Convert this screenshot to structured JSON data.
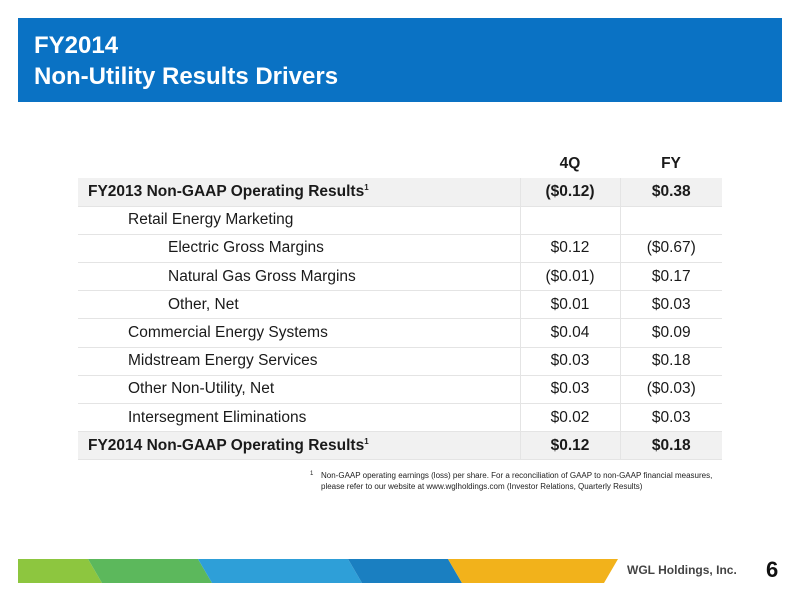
{
  "header": {
    "title_line1": "FY2014",
    "title_line2": "Non-Utility Results Drivers",
    "bg_color": "#0a72c4"
  },
  "table": {
    "columns": [
      "4Q",
      "FY"
    ],
    "rows": [
      {
        "label": "FY2013 Non-GAAP Operating Results",
        "sup": "1",
        "q4": "($0.12)",
        "fy": "$0.38",
        "level": 0,
        "total": true
      },
      {
        "label": "Retail Energy Marketing",
        "q4": "",
        "fy": "",
        "level": 1
      },
      {
        "label": "Electric Gross Margins",
        "q4": "$0.12",
        "fy": "($0.67)",
        "level": 2
      },
      {
        "label": "Natural Gas Gross Margins",
        "q4": "($0.01)",
        "fy": "$0.17",
        "level": 2
      },
      {
        "label": "Other, Net",
        "q4": "$0.01",
        "fy": "$0.03",
        "level": 2
      },
      {
        "label": "Commercial Energy Systems",
        "q4": "$0.04",
        "fy": "$0.09",
        "level": 1
      },
      {
        "label": "Midstream Energy Services",
        "q4": "$0.03",
        "fy": "$0.18",
        "level": 1
      },
      {
        "label": "Other Non-Utility, Net",
        "q4": "$0.03",
        "fy": "($0.03)",
        "level": 1
      },
      {
        "label": "Intersegment Eliminations",
        "q4": "$0.02",
        "fy": "$0.03",
        "level": 1
      },
      {
        "label": "FY2014 Non-GAAP Operating Results",
        "sup": "1",
        "q4": "$0.12",
        "fy": "$0.18",
        "level": 0,
        "total": true
      }
    ]
  },
  "footnote": {
    "mark": "1",
    "text": "Non-GAAP operating earnings (loss) per share. For a reconciliation of GAAP to non-GAAP financial measures, please refer to our website at www.wglholdings.com (Investor Relations, Quarterly Results)"
  },
  "footer": {
    "company": "WGL Holdings, Inc.",
    "page_number": "6",
    "band_colors": [
      "#8dc63f",
      "#5cb85c",
      "#2e9fd8",
      "#1a7fc1",
      "#f2b21b"
    ]
  }
}
